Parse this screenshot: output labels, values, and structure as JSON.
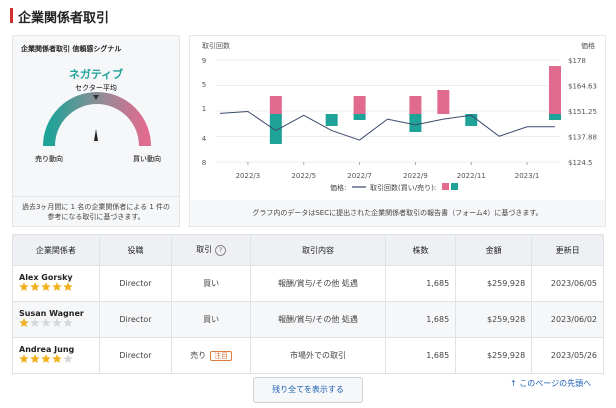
{
  "header": {
    "title": "企業関係者取引"
  },
  "signal": {
    "title": "企業関係者取引 信頼感シグナル",
    "verdict": "ネガティブ",
    "sector_label": "セクター平均",
    "left_label": "売り動向",
    "right_label": "買い動向",
    "note": "過去3ヶ月間に 1 名の企業関係者による 1 件の参考になる取引に基づきます。"
  },
  "chart_data": {
    "type": "bar-line",
    "ylabel": "取引回数",
    "y2label": "価格",
    "categories": [
      null,
      "2022/3",
      null,
      "2022/5",
      null,
      "2022/7",
      null,
      "2022/9",
      null,
      "2022/11",
      null,
      "2023/1",
      null
    ],
    "ylim": [
      -8,
      9
    ],
    "yticks": [
      9,
      5,
      1,
      {
        "value": -4,
        "label": "4"
      },
      {
        "value": -8,
        "label": "8"
      }
    ],
    "y2lim": [
      124.5,
      178
    ],
    "y2ticks": [
      {
        "value": 178,
        "label": "$178"
      },
      {
        "value": 164.63,
        "label": "$164.63"
      },
      {
        "value": 151.25,
        "label": "$151.25"
      },
      {
        "value": 137.88,
        "label": "$137.88"
      },
      {
        "value": 124.5,
        "label": "$124.5"
      }
    ],
    "series": [
      {
        "name": "価格:",
        "color": "#3b4a6b",
        "axis": "y2",
        "values": [
          150,
          151,
          141,
          149,
          141,
          136,
          147,
          144,
          147,
          149,
          138,
          143,
          143
        ]
      },
      {
        "name": "買い",
        "color": "#e06b8f",
        "values": [
          null,
          null,
          3,
          null,
          null,
          3,
          null,
          3,
          4,
          null,
          null,
          null,
          8
        ]
      },
      {
        "name": "売り",
        "color": "#1fa298",
        "values": [
          null,
          null,
          5,
          null,
          2,
          1,
          null,
          3,
          null,
          2,
          null,
          null,
          1
        ]
      }
    ],
    "legend_label": "取引回数(買い/売り):",
    "note": "グラフ内のデータはSECに提出された企業関係者取引の報告書（フォーム4）に基づきます。"
  },
  "table": {
    "headers": [
      "企業関係者",
      "役職",
      "取引",
      "取引内容",
      "株数",
      "金額",
      "更新日"
    ],
    "help_icon": "?",
    "rows": [
      {
        "name": "Alex Gorsky",
        "rating": 5,
        "role": "Director",
        "trade": "買い",
        "detail": "報酬/賞与/その他 処遇",
        "shares": "1,685",
        "amount": "$259,928",
        "date": "2023/06/05"
      },
      {
        "name": "Susan Wagner",
        "rating": 1,
        "role": "Director",
        "trade": "買い",
        "detail": "報酬/賞与/その他 処遇",
        "shares": "1,685",
        "amount": "$259,928",
        "date": "2023/06/02"
      },
      {
        "name": "Andrea Jung",
        "rating": 4,
        "role": "Director",
        "trade": "売り",
        "badge": "注目",
        "detail": "市場外での取引",
        "shares": "1,685",
        "amount": "$259,928",
        "date": "2023/05/26"
      }
    ]
  },
  "footer": {
    "button": "残り全てを表示する",
    "top_link": "↑ このページの先頭へ"
  }
}
